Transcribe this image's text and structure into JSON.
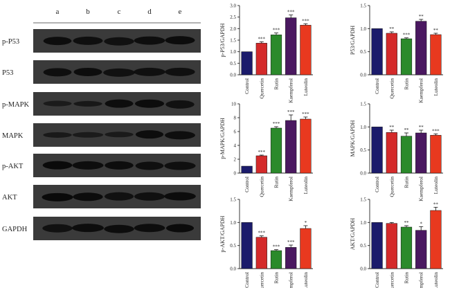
{
  "blot_panel": {
    "lane_labels": [
      "a",
      "b",
      "c",
      "d",
      "e"
    ],
    "proteins": [
      "p-P53",
      "P53",
      "p-MAPK",
      "MAPK",
      "p-AKT",
      "AKT",
      "GAPDH"
    ]
  },
  "colors": [
    "#1b1b6b",
    "#d42a2a",
    "#2b8a2b",
    "#4a1860",
    "#e8391f"
  ],
  "chart_data": [
    {
      "type": "bar",
      "categories": [
        "Control",
        "Quercetin",
        "Rutin",
        "Kaempferol",
        "Luteolin"
      ],
      "series": [
        {
          "values": [
            1.0,
            1.37,
            1.73,
            2.47,
            2.15
          ],
          "errors": [
            0.0,
            0.06,
            0.08,
            0.12,
            0.06
          ]
        }
      ],
      "significance": [
        "",
        "***",
        "***",
        "***",
        "***"
      ],
      "ylabel": "p-P53/GAPDH",
      "ylim": [
        0,
        3.0
      ],
      "yticks": [
        0.0,
        0.5,
        1.0,
        1.5,
        2.0,
        2.5,
        3.0
      ],
      "ytick_labels": [
        "0.0",
        "0.5",
        "1.0",
        "1.5",
        "2.0",
        "2.5",
        "3.0"
      ]
    },
    {
      "type": "bar",
      "categories": [
        "Control",
        "Quercetin",
        "Rutin",
        "Kaempferol",
        "Luteolin"
      ],
      "series": [
        {
          "values": [
            1.0,
            0.9,
            0.78,
            1.16,
            0.87
          ],
          "errors": [
            0.0,
            0.03,
            0.02,
            0.04,
            0.03
          ]
        }
      ],
      "significance": [
        "",
        "**",
        "***",
        "**",
        "**"
      ],
      "ylabel": "P53/GAPDH",
      "ylim": [
        0,
        1.5
      ],
      "yticks": [
        0.0,
        0.5,
        1.0,
        1.5
      ],
      "ytick_labels": [
        "0.0",
        "0.5",
        "1.0",
        "1.5"
      ]
    },
    {
      "type": "bar",
      "categories": [
        "Control",
        "Quercetin",
        "Rutin",
        "Kaempferol",
        "Luteolin"
      ],
      "series": [
        {
          "values": [
            1.0,
            2.5,
            6.5,
            7.6,
            7.8
          ],
          "errors": [
            0.0,
            0.1,
            0.2,
            0.8,
            0.3
          ]
        }
      ],
      "significance": [
        "",
        "***",
        "***",
        "***",
        "***"
      ],
      "ylabel": "p-MAPK/GAPDH",
      "ylim": [
        0,
        10
      ],
      "yticks": [
        0,
        2,
        4,
        6,
        8,
        10
      ],
      "ytick_labels": [
        "0",
        "2",
        "4",
        "6",
        "8",
        "10"
      ]
    },
    {
      "type": "bar",
      "categories": [
        "Control",
        "Quercetin",
        "Rutin",
        "Kaempferol",
        "Luteolin"
      ],
      "series": [
        {
          "values": [
            1.0,
            0.88,
            0.8,
            0.87,
            0.82
          ],
          "errors": [
            0.0,
            0.05,
            0.07,
            0.06,
            0.03
          ]
        }
      ],
      "significance": [
        "",
        "**",
        "**",
        "**",
        "***"
      ],
      "ylabel": "MAPK/GAPDH",
      "ylim": [
        0,
        1.5
      ],
      "yticks": [
        0.0,
        0.5,
        1.0,
        1.5
      ],
      "ytick_labels": [
        "0.0",
        "0.5",
        "1.0",
        "1.5"
      ]
    },
    {
      "type": "bar",
      "categories": [
        "Control",
        "Quercetin",
        "Rutin",
        "Kaempferol",
        "Luteolin"
      ],
      "series": [
        {
          "values": [
            1.0,
            0.68,
            0.39,
            0.46,
            0.87
          ],
          "errors": [
            0.0,
            0.03,
            0.02,
            0.05,
            0.06
          ]
        }
      ],
      "significance": [
        "",
        "***",
        "***",
        "***",
        "*"
      ],
      "ylabel": "p-AKT/GAPDH",
      "ylim": [
        0,
        1.5
      ],
      "yticks": [
        0.0,
        0.5,
        1.0,
        1.5
      ],
      "ytick_labels": [
        "0.0",
        "0.5",
        "1.0",
        "1.5"
      ]
    },
    {
      "type": "bar",
      "categories": [
        "Control",
        "Quercetin",
        "Rutin",
        "Kaempferol",
        "Luteolin"
      ],
      "series": [
        {
          "values": [
            1.0,
            0.98,
            0.9,
            0.83,
            1.26
          ],
          "errors": [
            0.0,
            0.02,
            0.03,
            0.08,
            0.07
          ]
        }
      ],
      "significance": [
        "",
        "",
        "**",
        "*",
        "**"
      ],
      "ylabel": "AKT/GAPDH",
      "ylim": [
        0,
        1.5
      ],
      "yticks": [
        0.0,
        0.5,
        1.0,
        1.5
      ],
      "ytick_labels": [
        "0.0",
        "0.5",
        "1.0",
        "1.5"
      ]
    }
  ]
}
